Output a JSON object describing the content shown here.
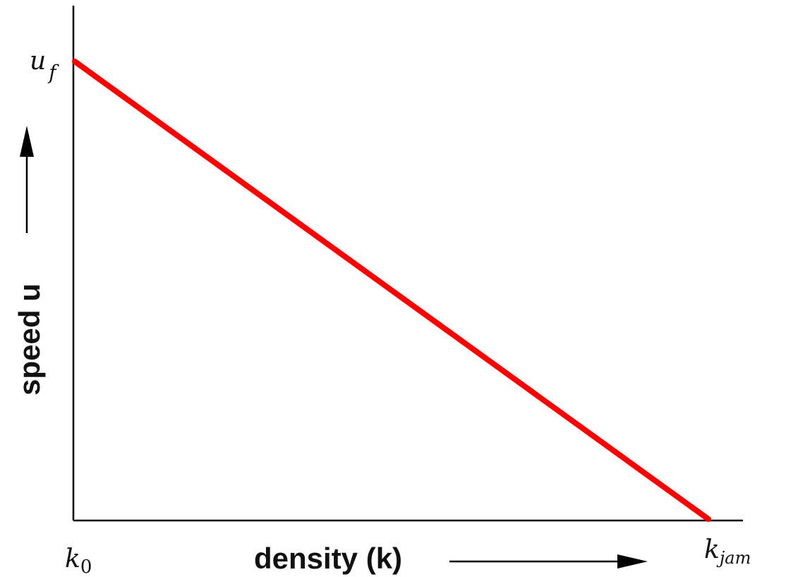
{
  "chart_data": {
    "type": "line",
    "xlabel": "density (k)",
    "ylabel": "speed u",
    "x_tick_labels": [
      {
        "base": "k",
        "sub": "0"
      },
      {
        "base": "k",
        "sub": "jam"
      }
    ],
    "y_tick_labels": [
      {
        "base": "u",
        "sub": "f"
      }
    ],
    "xlim": [
      "k_0",
      "k_jam"
    ],
    "ylim": [
      0,
      "u_f"
    ],
    "grid": false,
    "series": [
      {
        "color": "#ff0000",
        "x": [
          0,
          1
        ],
        "y": [
          1,
          0
        ]
      }
    ]
  }
}
